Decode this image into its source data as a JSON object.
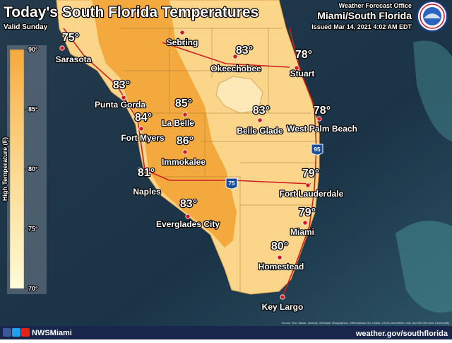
{
  "header": {
    "title": "Today's South Florida Temperatures",
    "subtitle": "Valid Sunday",
    "office_label": "Weather Forecast Office",
    "office": "Miami/South Florida",
    "issued": "Issued Mar 14, 2021 4:02 AM EDT"
  },
  "legend": {
    "title": "High Temperature (F)",
    "ticks": [
      "90°",
      "85°",
      "80°",
      "75°",
      "70°"
    ]
  },
  "cities": [
    {
      "name": "Sarasota",
      "temp": "75°"
    },
    {
      "name": "Sebring"
    },
    {
      "name": "Okeechobee",
      "temp": "83°"
    },
    {
      "name": "Stuart",
      "temp": "78°"
    },
    {
      "name": "Punta Gorda",
      "temp": "83°"
    },
    {
      "name": "La Belle",
      "temp": "85°"
    },
    {
      "name": "Belle Glade",
      "temp": "83°"
    },
    {
      "name": "West Palm Beach",
      "temp": "78°"
    },
    {
      "name": "Fort Myers",
      "temp": "84°"
    },
    {
      "name": "Immokalee",
      "temp": "86°"
    },
    {
      "name": "Naples",
      "temp": "81°"
    },
    {
      "name": "Fort Lauderdale",
      "temp": "79°"
    },
    {
      "name": "Miami",
      "temp": "79°"
    },
    {
      "name": "Everglades City",
      "temp": "83°"
    },
    {
      "name": "Homestead",
      "temp": "80°"
    },
    {
      "name": "Key Largo"
    }
  ],
  "shields": [
    "95",
    "75"
  ],
  "attribution": "Source: Esri, Maxar, GeoEye, Earthstar Geographics, CNES/Airbus DS, USDA, USGS, AeroGRID, IGN, and the GIS User Community",
  "footer": {
    "handle": "NWSMiami",
    "url": "weather.gov/southflorida"
  }
}
